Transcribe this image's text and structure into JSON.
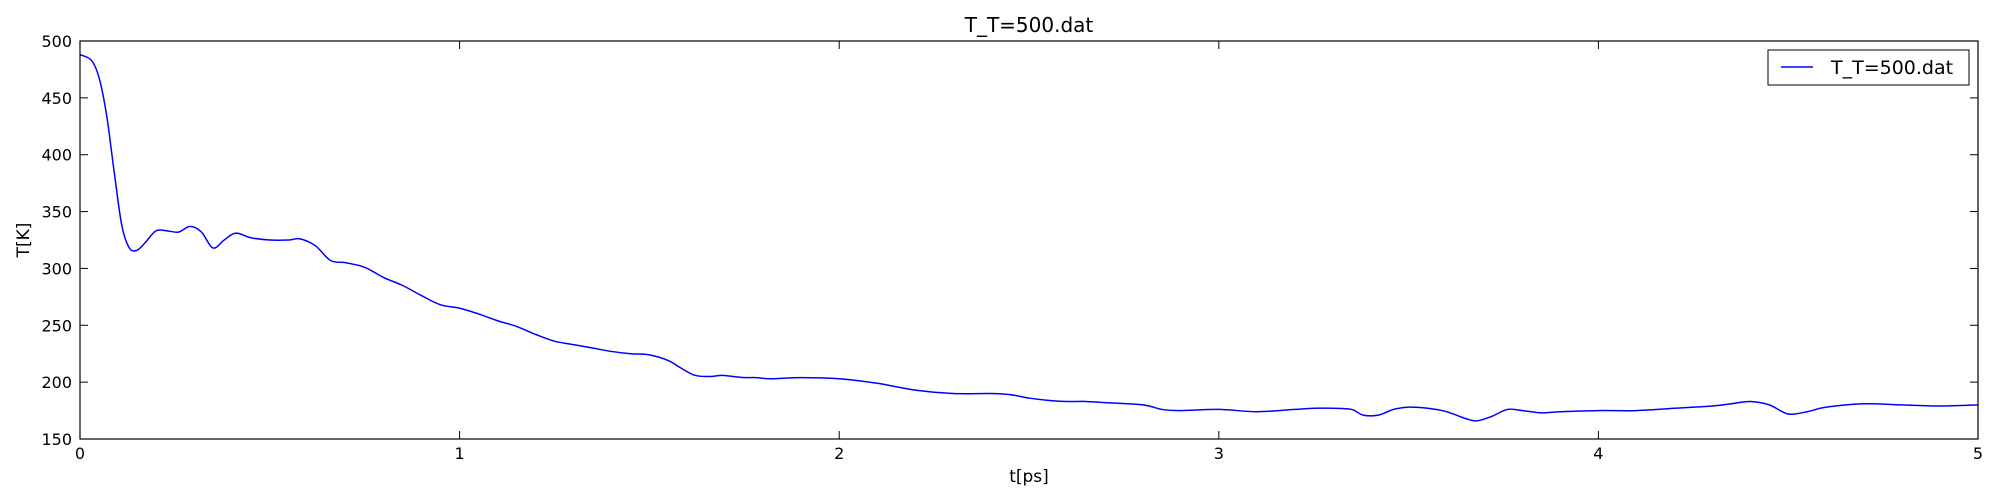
{
  "chart_data": {
    "type": "line",
    "title": "T_T=500.dat",
    "xlabel": "t[ps]",
    "ylabel": "T[K]",
    "xlim": [
      0,
      5
    ],
    "ylim": [
      150,
      500
    ],
    "xticks": [
      "0",
      "1",
      "2",
      "3",
      "4",
      "5"
    ],
    "yticks": [
      "150",
      "200",
      "250",
      "300",
      "350",
      "400",
      "450",
      "500"
    ],
    "grid": false,
    "legend_position": "top-right",
    "series": [
      {
        "name": "T_T=500.dat",
        "color": "#0000ff",
        "x": [
          0,
          0.03,
          0.05,
          0.07,
          0.09,
          0.11,
          0.13,
          0.15,
          0.17,
          0.2,
          0.23,
          0.26,
          0.29,
          0.32,
          0.35,
          0.38,
          0.41,
          0.45,
          0.5,
          0.55,
          0.58,
          0.62,
          0.66,
          0.7,
          0.75,
          0.8,
          0.85,
          0.9,
          0.95,
          1.0,
          1.05,
          1.1,
          1.15,
          1.2,
          1.25,
          1.3,
          1.35,
          1.4,
          1.45,
          1.5,
          1.55,
          1.58,
          1.62,
          1.66,
          1.69,
          1.72,
          1.75,
          1.78,
          1.82,
          1.9,
          2.0,
          2.1,
          2.2,
          2.3,
          2.4,
          2.45,
          2.5,
          2.55,
          2.6,
          2.65,
          2.7,
          2.8,
          2.85,
          2.9,
          3.0,
          3.1,
          3.2,
          3.25,
          3.3,
          3.35,
          3.38,
          3.42,
          3.46,
          3.5,
          3.55,
          3.6,
          3.65,
          3.68,
          3.72,
          3.76,
          3.8,
          3.85,
          3.9,
          4.0,
          4.1,
          4.2,
          4.3,
          4.35,
          4.4,
          4.45,
          4.5,
          4.55,
          4.6,
          4.7,
          4.8,
          4.9,
          5.0
        ],
        "values": [
          488,
          483,
          468,
          435,
          385,
          338,
          318,
          316,
          322,
          333,
          333,
          332,
          337,
          332,
          318,
          325,
          331,
          327,
          325,
          325,
          326,
          320,
          307,
          305,
          301,
          292,
          285,
          276,
          268,
          265,
          260,
          254,
          249,
          242,
          236,
          233,
          230,
          227,
          225,
          224,
          219,
          213,
          206,
          205,
          206,
          205,
          204,
          204,
          203,
          204,
          203,
          199,
          193,
          190,
          190,
          189,
          186,
          184,
          183,
          183,
          182,
          180,
          176,
          175,
          176,
          174,
          176,
          177,
          177,
          176,
          171,
          171,
          176,
          178,
          177,
          174,
          168,
          166,
          170,
          176,
          175,
          173,
          174,
          175,
          175,
          177,
          179,
          181,
          183,
          180,
          172,
          174,
          178,
          181,
          180,
          179,
          180
        ]
      }
    ]
  }
}
